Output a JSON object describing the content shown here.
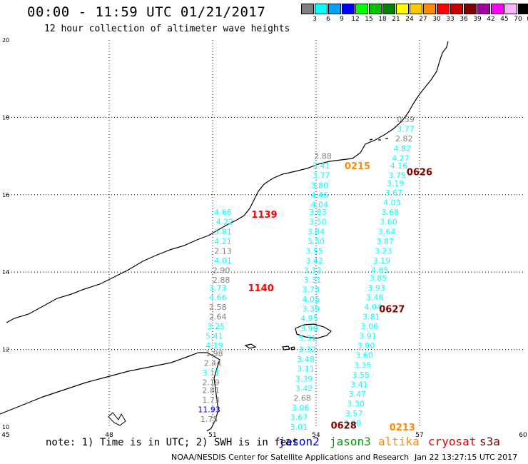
{
  "title": "00:00 - 11:59 UTC 01/21/2017",
  "subtitle": "12 hour collection of altimeter wave heights",
  "legend": {
    "unit": "(ft)",
    "items": [
      {
        "label": "3",
        "color": "#808080"
      },
      {
        "label": "6",
        "color": "#00ffff"
      },
      {
        "label": "9",
        "color": "#00a0ff"
      },
      {
        "label": "12",
        "color": "#0000ff"
      },
      {
        "label": "15",
        "color": "#00ff00"
      },
      {
        "label": "18",
        "color": "#00c000"
      },
      {
        "label": "21",
        "color": "#008000"
      },
      {
        "label": "24",
        "color": "#ffff00"
      },
      {
        "label": "27",
        "color": "#ffc800"
      },
      {
        "label": "30",
        "color": "#ff8c00"
      },
      {
        "label": "33",
        "color": "#ff0000"
      },
      {
        "label": "36",
        "color": "#c80000"
      },
      {
        "label": "39",
        "color": "#800000"
      },
      {
        "label": "42",
        "color": "#a000a0"
      },
      {
        "label": "45",
        "color": "#ff00ff"
      },
      {
        "label": "70",
        "color": "#ffb4ff"
      },
      {
        "label": "",
        "color": "#000000"
      }
    ]
  },
  "axes": {
    "lon_ticks": [
      45,
      48,
      51,
      54,
      57,
      60
    ],
    "lat_ticks": [
      10,
      12,
      14,
      16,
      18,
      20
    ],
    "lon_range": [
      45,
      60
    ],
    "lat_range": [
      10,
      20
    ]
  },
  "pass_times": [
    {
      "label": "1139",
      "lon": 52.5,
      "lat": 15.5,
      "color": "#ff0000"
    },
    {
      "label": "1140",
      "lon": 52.4,
      "lat": 13.6,
      "color": "#ff0000"
    },
    {
      "label": "0215",
      "lon": 55.2,
      "lat": 16.75,
      "color": "#ff8c00"
    },
    {
      "label": "0626",
      "lon": 57.0,
      "lat": 16.6,
      "color": "#800000"
    },
    {
      "label": "0627",
      "lon": 56.2,
      "lat": 13.05,
      "color": "#800000"
    },
    {
      "label": "0628",
      "lon": 54.8,
      "lat": 10.05,
      "color": "#800000"
    },
    {
      "label": "0213",
      "lon": 56.5,
      "lat": 10.0,
      "color": "#ff8c00"
    }
  ],
  "wave_heights": [
    {
      "v": "4.66",
      "lon": 51.3,
      "lat": 15.55,
      "c": "#00ffff"
    },
    {
      "v": "4.22",
      "lon": 51.35,
      "lat": 15.3,
      "c": "#00ffff"
    },
    {
      "v": "3.81",
      "lon": 51.3,
      "lat": 15.05,
      "c": "#00ffff"
    },
    {
      "v": "4.21",
      "lon": 51.3,
      "lat": 14.8,
      "c": "#00ffff"
    },
    {
      "v": "2.13",
      "lon": 51.3,
      "lat": 14.55,
      "c": "#808080"
    },
    {
      "v": "4.01",
      "lon": 51.3,
      "lat": 14.3,
      "c": "#00ffff"
    },
    {
      "v": "2.90",
      "lon": 51.25,
      "lat": 14.05,
      "c": "#808080"
    },
    {
      "v": "2.88",
      "lon": 51.25,
      "lat": 13.8,
      "c": "#808080"
    },
    {
      "v": "3.73",
      "lon": 51.15,
      "lat": 13.6,
      "c": "#00ffff"
    },
    {
      "v": "4.66",
      "lon": 51.15,
      "lat": 13.35,
      "c": "#00ffff"
    },
    {
      "v": "2.58",
      "lon": 51.15,
      "lat": 13.1,
      "c": "#808080"
    },
    {
      "v": "2.64",
      "lon": 51.15,
      "lat": 12.85,
      "c": "#808080"
    },
    {
      "v": "3.25",
      "lon": 51.1,
      "lat": 12.6,
      "c": "#00ffff"
    },
    {
      "v": "5.41",
      "lon": 51.05,
      "lat": 12.35,
      "c": "#00ffff"
    },
    {
      "v": "4.19",
      "lon": 51.05,
      "lat": 12.1,
      "c": "#00ffff"
    },
    {
      "v": "1.98",
      "lon": 51.05,
      "lat": 11.9,
      "c": "#808080"
    },
    {
      "v": "2.44",
      "lon": 51.0,
      "lat": 11.65,
      "c": "#808080"
    },
    {
      "v": "3.11",
      "lon": 50.95,
      "lat": 11.4,
      "c": "#00ffff"
    },
    {
      "v": "2.19",
      "lon": 50.95,
      "lat": 11.15,
      "c": "#808080"
    },
    {
      "v": "2.81",
      "lon": 50.95,
      "lat": 10.95,
      "c": "#808080"
    },
    {
      "v": "1.73",
      "lon": 50.95,
      "lat": 10.7,
      "c": "#808080"
    },
    {
      "v": "11.93",
      "lon": 50.9,
      "lat": 10.45,
      "c": "#0000ff"
    },
    {
      "v": "1.75",
      "lon": 50.9,
      "lat": 10.2,
      "c": "#808080"
    },
    {
      "v": "2.88",
      "lon": 54.2,
      "lat": 17.0,
      "c": "#808080"
    },
    {
      "v": "3.41",
      "lon": 54.15,
      "lat": 16.75,
      "c": "#00ffff"
    },
    {
      "v": "3.77",
      "lon": 54.15,
      "lat": 16.5,
      "c": "#00ffff"
    },
    {
      "v": "3.80",
      "lon": 54.1,
      "lat": 16.25,
      "c": "#00ffff"
    },
    {
      "v": "4.46",
      "lon": 54.1,
      "lat": 16.0,
      "c": "#00ffff"
    },
    {
      "v": "4.04",
      "lon": 54.1,
      "lat": 15.75,
      "c": "#00ffff"
    },
    {
      "v": "3.83",
      "lon": 54.05,
      "lat": 15.55,
      "c": "#00ffff"
    },
    {
      "v": "3.50",
      "lon": 54.05,
      "lat": 15.3,
      "c": "#00ffff"
    },
    {
      "v": "3.84",
      "lon": 54.0,
      "lat": 15.05,
      "c": "#00ffff"
    },
    {
      "v": "3.50",
      "lon": 54.0,
      "lat": 14.8,
      "c": "#00ffff"
    },
    {
      "v": "3.55",
      "lon": 53.95,
      "lat": 14.55,
      "c": "#00ffff"
    },
    {
      "v": "3.42",
      "lon": 53.95,
      "lat": 14.3,
      "c": "#00ffff"
    },
    {
      "v": "3.12",
      "lon": 53.9,
      "lat": 14.05,
      "c": "#00ffff"
    },
    {
      "v": "3.31",
      "lon": 53.9,
      "lat": 13.8,
      "c": "#00ffff"
    },
    {
      "v": "3.73",
      "lon": 53.85,
      "lat": 13.55,
      "c": "#00ffff"
    },
    {
      "v": "4.05",
      "lon": 53.85,
      "lat": 13.3,
      "c": "#00ffff"
    },
    {
      "v": "3.39",
      "lon": 53.85,
      "lat": 13.05,
      "c": "#00ffff"
    },
    {
      "v": "4.95",
      "lon": 53.8,
      "lat": 12.8,
      "c": "#00ffff"
    },
    {
      "v": "3.90",
      "lon": 53.8,
      "lat": 12.55,
      "c": "#00ffff"
    },
    {
      "v": "5.31",
      "lon": 53.75,
      "lat": 12.3,
      "c": "#00ffff"
    },
    {
      "v": "3.32",
      "lon": 53.75,
      "lat": 12.0,
      "c": "#00ffff"
    },
    {
      "v": "3.48",
      "lon": 53.7,
      "lat": 11.75,
      "c": "#00ffff"
    },
    {
      "v": "3.11",
      "lon": 53.7,
      "lat": 11.5,
      "c": "#00ffff"
    },
    {
      "v": "3.39",
      "lon": 53.65,
      "lat": 11.25,
      "c": "#00ffff"
    },
    {
      "v": "3.42",
      "lon": 53.65,
      "lat": 11.0,
      "c": "#00ffff"
    },
    {
      "v": "2.68",
      "lon": 53.6,
      "lat": 10.75,
      "c": "#808080"
    },
    {
      "v": "3.06",
      "lon": 53.55,
      "lat": 10.5,
      "c": "#00ffff"
    },
    {
      "v": "3.67",
      "lon": 53.5,
      "lat": 10.25,
      "c": "#00ffff"
    },
    {
      "v": "3.01",
      "lon": 53.5,
      "lat": 10.0,
      "c": "#00ffff"
    },
    {
      "v": "0.59",
      "lon": 56.6,
      "lat": 17.95,
      "c": "#808080"
    },
    {
      "v": "3.77",
      "lon": 56.6,
      "lat": 17.7,
      "c": "#00ffff"
    },
    {
      "v": "2.82",
      "lon": 56.55,
      "lat": 17.45,
      "c": "#808080"
    },
    {
      "v": "4.82",
      "lon": 56.5,
      "lat": 17.2,
      "c": "#00ffff"
    },
    {
      "v": "4.27",
      "lon": 56.45,
      "lat": 16.95,
      "c": "#00ffff"
    },
    {
      "v": "4.16",
      "lon": 56.4,
      "lat": 16.75,
      "c": "#00ffff"
    },
    {
      "v": "3.75",
      "lon": 56.35,
      "lat": 16.5,
      "c": "#00ffff"
    },
    {
      "v": "3.19",
      "lon": 56.3,
      "lat": 16.3,
      "c": "#00ffff"
    },
    {
      "v": "3.67",
      "lon": 56.25,
      "lat": 16.05,
      "c": "#00ffff"
    },
    {
      "v": "4.03",
      "lon": 56.2,
      "lat": 15.8,
      "c": "#00ffff"
    },
    {
      "v": "3.68",
      "lon": 56.15,
      "lat": 15.55,
      "c": "#00ffff"
    },
    {
      "v": "3.60",
      "lon": 56.1,
      "lat": 15.3,
      "c": "#00ffff"
    },
    {
      "v": "3.64",
      "lon": 56.05,
      "lat": 15.05,
      "c": "#00ffff"
    },
    {
      "v": "3.87",
      "lon": 56.0,
      "lat": 14.8,
      "c": "#00ffff"
    },
    {
      "v": "3.23",
      "lon": 55.95,
      "lat": 14.55,
      "c": "#00ffff"
    },
    {
      "v": "3.19",
      "lon": 55.9,
      "lat": 14.3,
      "c": "#00ffff"
    },
    {
      "v": "4.85",
      "lon": 55.85,
      "lat": 14.05,
      "c": "#00ffff"
    },
    {
      "v": "3.85",
      "lon": 55.8,
      "lat": 13.85,
      "c": "#00ffff"
    },
    {
      "v": "3.93",
      "lon": 55.75,
      "lat": 13.6,
      "c": "#00ffff"
    },
    {
      "v": "3.48",
      "lon": 55.7,
      "lat": 13.35,
      "c": "#00ffff"
    },
    {
      "v": "4.04",
      "lon": 55.65,
      "lat": 13.1,
      "c": "#00ffff"
    },
    {
      "v": "3.81",
      "lon": 55.6,
      "lat": 12.85,
      "c": "#00ffff"
    },
    {
      "v": "3.06",
      "lon": 55.55,
      "lat": 12.6,
      "c": "#00ffff"
    },
    {
      "v": "3.91",
      "lon": 55.5,
      "lat": 12.35,
      "c": "#00ffff"
    },
    {
      "v": "3.90",
      "lon": 55.45,
      "lat": 12.1,
      "c": "#00ffff"
    },
    {
      "v": "3.60",
      "lon": 55.4,
      "lat": 11.85,
      "c": "#00ffff"
    },
    {
      "v": "3.35",
      "lon": 55.35,
      "lat": 11.6,
      "c": "#00ffff"
    },
    {
      "v": "3.55",
      "lon": 55.3,
      "lat": 11.35,
      "c": "#00ffff"
    },
    {
      "v": "3.41",
      "lon": 55.25,
      "lat": 11.1,
      "c": "#00ffff"
    },
    {
      "v": "3.47",
      "lon": 55.2,
      "lat": 10.85,
      "c": "#00ffff"
    },
    {
      "v": "3.30",
      "lon": 55.15,
      "lat": 10.6,
      "c": "#00ffff"
    },
    {
      "v": "3.57",
      "lon": 55.1,
      "lat": 10.35,
      "c": "#00ffff"
    },
    {
      "v": "3.90",
      "lon": 55.05,
      "lat": 10.1,
      "c": "#00ffff"
    }
  ],
  "footer": {
    "note": "note: 1) Time is in UTC; 2) SWH is in feet",
    "satellites": [
      {
        "name": "jason2",
        "color": "#0000dc"
      },
      {
        "name": "jason3",
        "color": "#00a000"
      },
      {
        "name": "altika",
        "color": "#ff8c00"
      },
      {
        "name": "cryosat",
        "color": "#e00000"
      },
      {
        "name": "s3a",
        "color": "#800000"
      }
    ],
    "credit": "NOAA/NESDIS Center for Satellite Applications and Research",
    "timestamp": "Jan 22 13:27:15 UTC 2017"
  }
}
